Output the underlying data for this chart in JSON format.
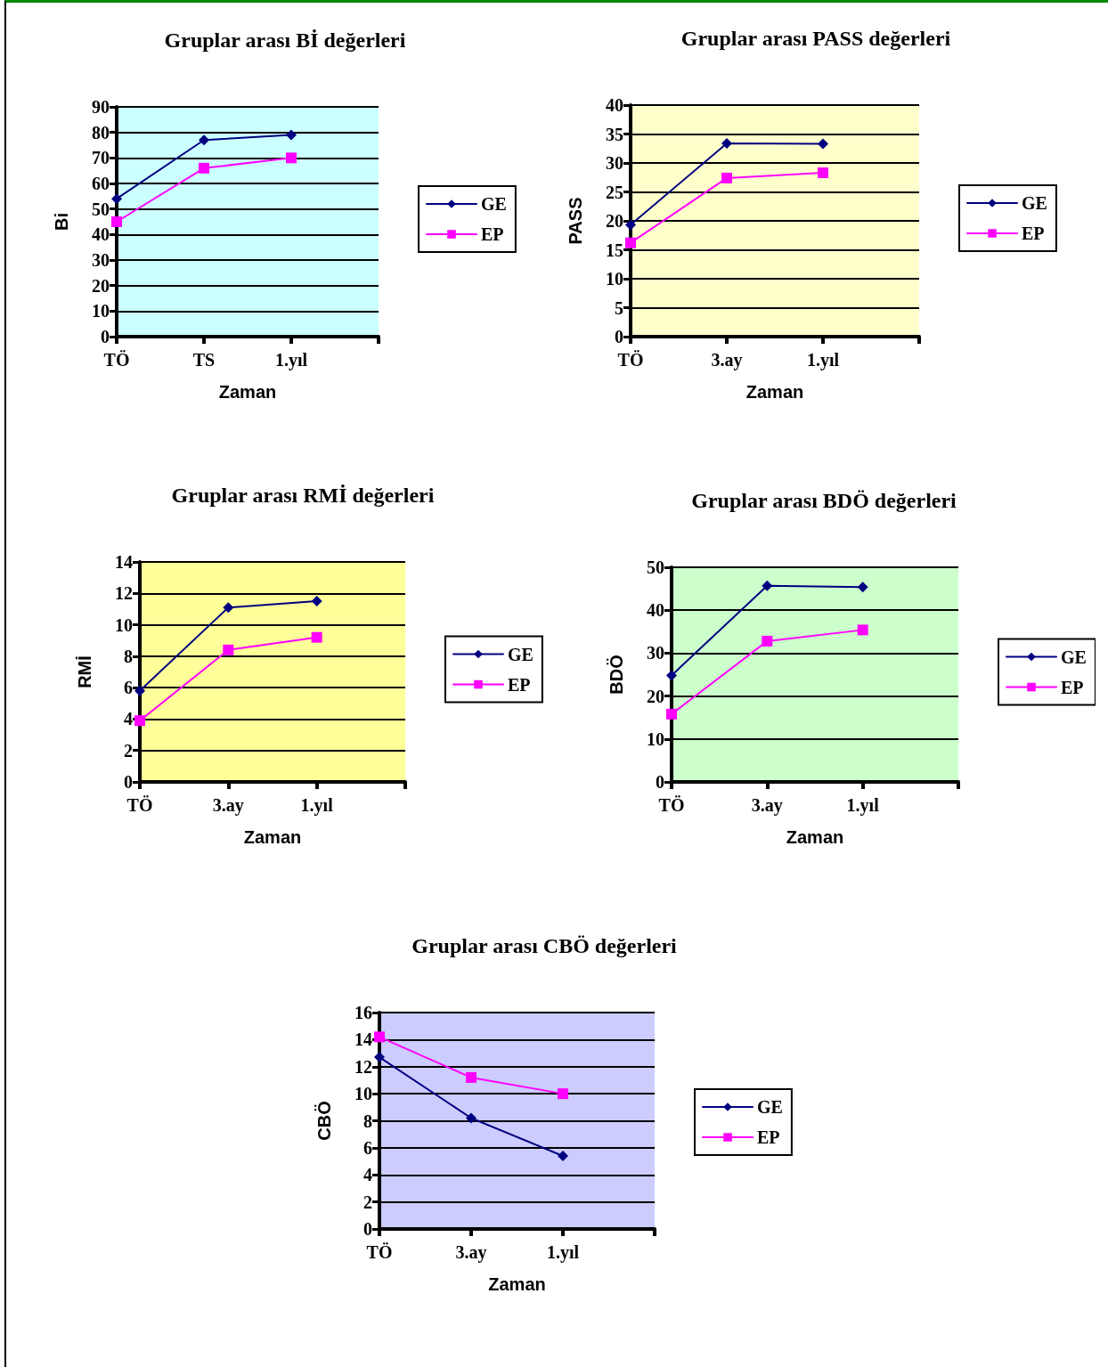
{
  "chart_data": [
    {
      "type": "line",
      "title": "Gruplar arası Bİ değerleri",
      "xlabel": "Zaman",
      "ylabel": "Bi",
      "categories": [
        "TÖ",
        "TS",
        "1.yıl",
        null
      ],
      "series": [
        {
          "name": "GE",
          "color": "#000080",
          "marker": "diamond",
          "values": [
            54,
            77,
            79,
            null
          ]
        },
        {
          "name": "EP",
          "color": "#ff00ff",
          "marker": "square",
          "values": [
            45,
            66,
            70,
            null
          ]
        }
      ],
      "ylim": [
        0,
        90
      ],
      "yticks": [
        0,
        10,
        20,
        30,
        40,
        50,
        60,
        70,
        80,
        90
      ],
      "grid": "y",
      "legend": "right",
      "line_style": "solid"
    },
    {
      "type": "line",
      "title": "Gruplar arası PASS değerleri",
      "xlabel": "Zaman",
      "ylabel": "PASS",
      "categories": [
        "TÖ",
        "3.ay",
        "1.yıl",
        null
      ],
      "series": [
        {
          "name": "GE",
          "color": "#000080",
          "marker": "diamond",
          "values": [
            19.3,
            33.4,
            33.3,
            null
          ]
        },
        {
          "name": "EP",
          "color": "#ff00ff",
          "marker": "square",
          "values": [
            16.2,
            27.4,
            28.3,
            null
          ]
        }
      ],
      "ylim": [
        0,
        40
      ],
      "yticks": [
        0,
        5,
        10,
        15,
        20,
        25,
        30,
        35,
        40
      ],
      "grid": "y",
      "legend": "right",
      "line_style": "solid"
    },
    {
      "type": "line",
      "title": "Gruplar arası RMİ değerleri",
      "xlabel": "Zaman",
      "ylabel": "RMİ",
      "categories": [
        "TÖ",
        "3.ay",
        "1.yıl",
        null
      ],
      "series": [
        {
          "name": "GE",
          "color": "#000080",
          "marker": "diamond",
          "values": [
            5.8,
            11.1,
            11.5,
            null
          ]
        },
        {
          "name": "EP",
          "color": "#ff00ff",
          "marker": "square",
          "values": [
            3.9,
            8.4,
            9.2,
            null
          ]
        }
      ],
      "ylim": [
        0,
        14
      ],
      "yticks": [
        0,
        2,
        4,
        6,
        8,
        10,
        12,
        14
      ],
      "grid": "y",
      "legend": "right",
      "line_style": "solid"
    },
    {
      "type": "line",
      "title": "Gruplar arası BDÖ değerleri",
      "xlabel": "Zaman",
      "ylabel": "BDÖ",
      "categories": [
        "TÖ",
        "3.ay",
        "1.yıl",
        null
      ],
      "series": [
        {
          "name": "GE",
          "color": "#000080",
          "marker": "diamond",
          "values": [
            24.8,
            45.7,
            45.4,
            null
          ]
        },
        {
          "name": "EP",
          "color": "#ff00ff",
          "marker": "square",
          "values": [
            15.8,
            32.8,
            35.4,
            null
          ]
        }
      ],
      "ylim": [
        0,
        50
      ],
      "yticks": [
        0,
        10,
        20,
        30,
        40,
        50
      ],
      "grid": "y",
      "legend": "right",
      "line_style": "solid"
    },
    {
      "type": "line",
      "title": "Gruplar arası CBÖ değerleri",
      "xlabel": "Zaman",
      "ylabel": "CBÖ",
      "categories": [
        "TÖ",
        "3.ay",
        "1.yıl",
        null
      ],
      "series": [
        {
          "name": "GE",
          "color": "#000080",
          "marker": "diamond",
          "values": [
            12.7,
            8.2,
            5.4,
            null
          ]
        },
        {
          "name": "EP",
          "color": "#ff00ff",
          "marker": "square",
          "values": [
            14.2,
            11.2,
            10.0,
            null
          ]
        }
      ],
      "ylim": [
        0,
        16
      ],
      "yticks": [
        0,
        2,
        4,
        6,
        8,
        10,
        12,
        14,
        16
      ],
      "grid": "y",
      "legend": "right",
      "line_style": "solid"
    }
  ]
}
